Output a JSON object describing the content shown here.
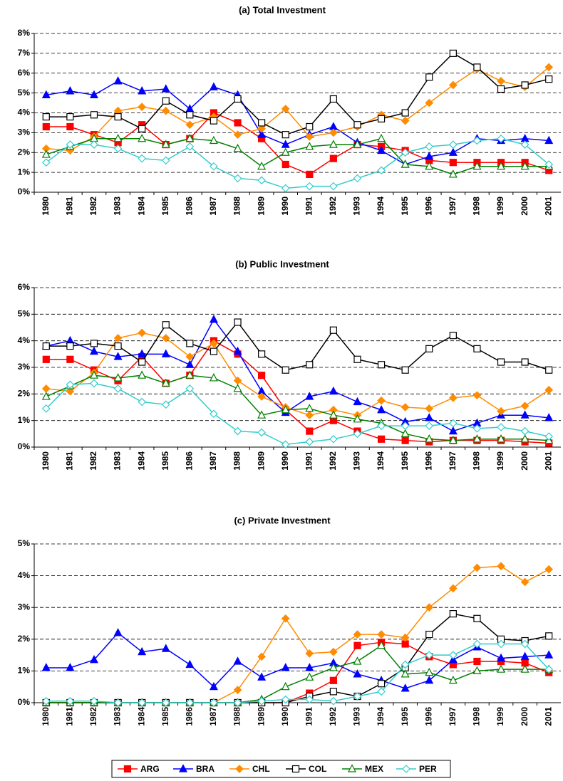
{
  "chart_data": [
    {
      "type": "line",
      "title": "(a) Total Investment",
      "categories": [
        "1980",
        "1981",
        "1982",
        "1983",
        "1984",
        "1985",
        "1986",
        "1987",
        "1988",
        "1989",
        "1990",
        "1991",
        "1992",
        "1993",
        "1994",
        "1995",
        "1996",
        "1997",
        "1998",
        "1999",
        "2000",
        "2001"
      ],
      "ylim": [
        0,
        8
      ],
      "yticks": [
        {
          "value": 0,
          "label": "0%"
        },
        {
          "value": 1,
          "label": "1%"
        },
        {
          "value": 2,
          "label": "2%"
        },
        {
          "value": 3,
          "label": "3%"
        },
        {
          "value": 4,
          "label": "4%"
        },
        {
          "value": 5,
          "label": "5%"
        },
        {
          "value": 6,
          "label": "6%"
        },
        {
          "value": 7,
          "label": "7%"
        },
        {
          "value": 8,
          "label": "8%"
        }
      ],
      "grid": true,
      "series": [
        {
          "name": "ARG",
          "color": "#ff0000",
          "marker": "square",
          "filled": true,
          "values": [
            3.3,
            3.3,
            2.9,
            2.5,
            3.4,
            2.4,
            2.7,
            4.0,
            3.5,
            2.7,
            1.4,
            0.9,
            1.7,
            2.4,
            2.3,
            2.1,
            1.6,
            1.5,
            1.5,
            1.5,
            1.5,
            1.1
          ]
        },
        {
          "name": "BRA",
          "color": "#0000ff",
          "marker": "triangle",
          "filled": true,
          "values": [
            4.9,
            5.1,
            4.9,
            5.6,
            5.1,
            5.2,
            4.2,
            5.3,
            4.9,
            2.9,
            2.4,
            2.9,
            3.3,
            2.5,
            2.1,
            1.4,
            1.8,
            2.0,
            2.7,
            2.6,
            2.7,
            2.6
          ]
        },
        {
          "name": "CHL",
          "color": "#ff8c00",
          "marker": "diamond",
          "filled": true,
          "values": [
            2.2,
            2.1,
            2.8,
            4.1,
            4.3,
            4.1,
            3.4,
            3.8,
            2.9,
            3.2,
            4.2,
            2.8,
            3.0,
            3.3,
            3.9,
            3.6,
            4.5,
            5.4,
            6.2,
            5.6,
            5.3,
            6.3
          ]
        },
        {
          "name": "COL",
          "color": "#000000",
          "marker": "square",
          "filled": false,
          "values": [
            3.8,
            3.8,
            3.9,
            3.8,
            3.2,
            4.6,
            3.9,
            3.6,
            4.7,
            3.5,
            2.9,
            3.3,
            4.7,
            3.4,
            3.7,
            4.0,
            5.8,
            7.0,
            6.3,
            5.2,
            5.4,
            5.7
          ]
        },
        {
          "name": "MEX",
          "color": "#008000",
          "marker": "triangle",
          "filled": false,
          "values": [
            1.9,
            2.3,
            2.7,
            2.7,
            2.7,
            2.4,
            2.7,
            2.6,
            2.2,
            1.3,
            2.0,
            2.3,
            2.4,
            2.4,
            2.7,
            1.4,
            1.3,
            0.9,
            1.3,
            1.3,
            1.3,
            1.3
          ]
        },
        {
          "name": "PER",
          "color": "#33cccc",
          "marker": "diamond",
          "filled": false,
          "values": [
            1.5,
            2.4,
            2.4,
            2.2,
            1.7,
            1.6,
            2.3,
            1.3,
            0.7,
            0.6,
            0.2,
            0.3,
            0.3,
            0.7,
            1.1,
            2.0,
            2.3,
            2.4,
            2.6,
            2.7,
            2.4,
            1.4
          ]
        }
      ]
    },
    {
      "type": "line",
      "title": "(b) Public Investment",
      "categories": [
        "1980",
        "1981",
        "1982",
        "1983",
        "1984",
        "1985",
        "1986",
        "1987",
        "1988",
        "1989",
        "1990",
        "1991",
        "1992",
        "1993",
        "1994",
        "1995",
        "1996",
        "1997",
        "1998",
        "1999",
        "2000",
        "2001"
      ],
      "ylim": [
        0,
        6
      ],
      "yticks": [
        {
          "value": 0,
          "label": "0%"
        },
        {
          "value": 1,
          "label": "1%"
        },
        {
          "value": 2,
          "label": "2%"
        },
        {
          "value": 3,
          "label": "3%"
        },
        {
          "value": 4,
          "label": "4%"
        },
        {
          "value": 5,
          "label": "5%"
        },
        {
          "value": 6,
          "label": "6%"
        }
      ],
      "grid": true,
      "series": [
        {
          "name": "ARG",
          "color": "#ff0000",
          "marker": "square",
          "filled": true,
          "values": [
            3.3,
            3.3,
            2.9,
            2.5,
            3.4,
            2.4,
            2.7,
            4.0,
            3.5,
            2.7,
            1.4,
            0.6,
            1.0,
            0.6,
            0.3,
            0.25,
            0.2,
            0.25,
            0.25,
            0.25,
            0.2,
            0.15
          ]
        },
        {
          "name": "BRA",
          "color": "#0000ff",
          "marker": "triangle",
          "filled": true,
          "values": [
            3.8,
            4.0,
            3.6,
            3.4,
            3.5,
            3.5,
            3.1,
            4.8,
            3.6,
            2.1,
            1.3,
            1.9,
            2.1,
            1.7,
            1.4,
            0.95,
            1.1,
            0.6,
            0.9,
            1.2,
            1.2,
            1.1
          ]
        },
        {
          "name": "CHL",
          "color": "#ff8c00",
          "marker": "diamond",
          "filled": true,
          "values": [
            2.2,
            2.1,
            2.8,
            4.1,
            4.3,
            4.1,
            3.4,
            3.9,
            2.5,
            1.9,
            1.5,
            1.2,
            1.4,
            1.2,
            1.75,
            1.5,
            1.45,
            1.85,
            1.95,
            1.35,
            1.55,
            2.15
          ]
        },
        {
          "name": "COL",
          "color": "#000000",
          "marker": "square",
          "filled": false,
          "values": [
            3.8,
            3.8,
            3.9,
            3.8,
            3.2,
            4.6,
            3.9,
            3.6,
            4.7,
            3.5,
            2.9,
            3.1,
            4.4,
            3.3,
            3.1,
            2.9,
            3.7,
            4.2,
            3.7,
            3.2,
            3.2,
            2.9
          ]
        },
        {
          "name": "MEX",
          "color": "#008000",
          "marker": "triangle",
          "filled": false,
          "values": [
            1.9,
            2.3,
            2.7,
            2.6,
            2.7,
            2.4,
            2.7,
            2.6,
            2.2,
            1.2,
            1.4,
            1.45,
            1.2,
            1.05,
            0.9,
            0.5,
            0.3,
            0.25,
            0.3,
            0.3,
            0.3,
            0.25
          ]
        },
        {
          "name": "PER",
          "color": "#33cccc",
          "marker": "diamond",
          "filled": false,
          "values": [
            1.45,
            2.35,
            2.4,
            2.2,
            1.7,
            1.6,
            2.2,
            1.25,
            0.6,
            0.55,
            0.1,
            0.2,
            0.3,
            0.5,
            0.8,
            0.8,
            0.8,
            0.9,
            0.7,
            0.75,
            0.6,
            0.4
          ]
        }
      ]
    },
    {
      "type": "line",
      "title": "(c) Private Investment",
      "categories": [
        "1980",
        "1981",
        "1982",
        "1983",
        "1984",
        "1985",
        "1986",
        "1987",
        "1988",
        "1989",
        "1990",
        "1991",
        "1992",
        "1993",
        "1994",
        "1995",
        "1996",
        "1997",
        "1998",
        "1999",
        "2000",
        "2001"
      ],
      "ylim": [
        0,
        5
      ],
      "yticks": [
        {
          "value": 0,
          "label": "0%"
        },
        {
          "value": 1,
          "label": "1%"
        },
        {
          "value": 2,
          "label": "2%"
        },
        {
          "value": 3,
          "label": "3%"
        },
        {
          "value": 4,
          "label": "4%"
        },
        {
          "value": 5,
          "label": "5%"
        }
      ],
      "grid": true,
      "series": [
        {
          "name": "ARG",
          "color": "#ff0000",
          "marker": "square",
          "filled": true,
          "values": [
            0,
            0,
            0,
            0,
            0,
            0,
            0,
            0,
            0,
            0,
            0,
            0.3,
            0.7,
            1.8,
            1.9,
            1.85,
            1.45,
            1.2,
            1.3,
            1.3,
            1.25,
            0.95
          ]
        },
        {
          "name": "BRA",
          "color": "#0000ff",
          "marker": "triangle",
          "filled": true,
          "values": [
            1.1,
            1.1,
            1.35,
            2.2,
            1.6,
            1.7,
            1.2,
            0.5,
            1.3,
            0.8,
            1.1,
            1.1,
            1.25,
            0.9,
            0.7,
            0.45,
            0.7,
            1.35,
            1.75,
            1.4,
            1.45,
            1.5
          ]
        },
        {
          "name": "CHL",
          "color": "#ff8c00",
          "marker": "diamond",
          "filled": true,
          "values": [
            0,
            0,
            0,
            0,
            0,
            0,
            0,
            0,
            0.4,
            1.45,
            2.65,
            1.55,
            1.6,
            2.15,
            2.15,
            2.05,
            3.0,
            3.6,
            4.25,
            4.3,
            3.8,
            4.2
          ]
        },
        {
          "name": "COL",
          "color": "#000000",
          "marker": "square",
          "filled": false,
          "values": [
            0,
            0,
            0,
            0,
            0,
            0,
            0,
            0,
            0,
            0,
            0,
            0.2,
            0.35,
            0.2,
            0.6,
            1.1,
            2.15,
            2.8,
            2.65,
            2.0,
            1.95,
            2.1
          ]
        },
        {
          "name": "MEX",
          "color": "#008000",
          "marker": "triangle",
          "filled": false,
          "values": [
            0,
            0,
            0,
            0,
            0,
            0,
            0,
            0,
            0,
            0.1,
            0.5,
            0.8,
            1.1,
            1.3,
            1.8,
            0.9,
            0.95,
            0.7,
            1.0,
            1.05,
            1.05,
            1.05
          ]
        },
        {
          "name": "PER",
          "color": "#33cccc",
          "marker": "diamond",
          "filled": false,
          "values": [
            0.05,
            0.05,
            0.05,
            0,
            0,
            0,
            0,
            0,
            0,
            0.05,
            0.1,
            0.1,
            0.05,
            0.2,
            0.35,
            1.2,
            1.5,
            1.5,
            1.85,
            1.85,
            1.85,
            1.05
          ]
        }
      ]
    }
  ]
}
